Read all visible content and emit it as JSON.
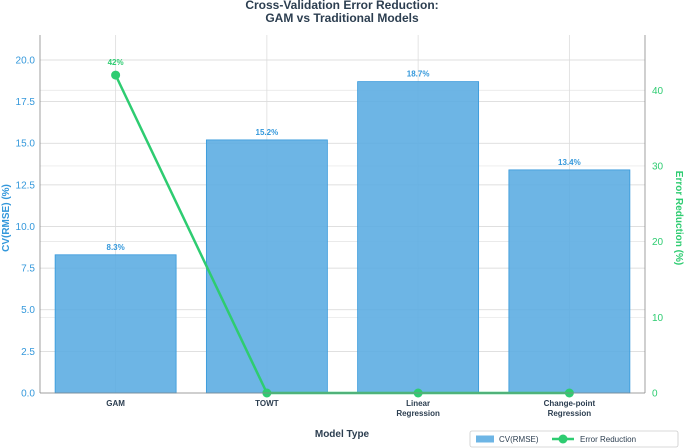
{
  "chart_data": {
    "type": "bar",
    "title": "Cross-Validation Error Reduction:",
    "subtitle": "GAM vs Traditional Models",
    "xlabel": "Model Type",
    "ylabel": "CV(RMSE) (%)",
    "y2label": "Error Reduction (%)",
    "categories": [
      [
        "GAM"
      ],
      [
        "TOWT"
      ],
      [
        "Linear",
        "Regression"
      ],
      [
        "Change-point",
        "Regression"
      ]
    ],
    "ylim": [
      0,
      21.5
    ],
    "y2lim": [
      0,
      47.3
    ],
    "yticks": [
      "0.0",
      "2.5",
      "5.0",
      "7.5",
      "10.0",
      "12.5",
      "15.0",
      "17.5",
      "20.0"
    ],
    "y2ticks": [
      "0",
      "10",
      "20",
      "30",
      "40"
    ],
    "grid": true,
    "legend_position": "bottom-right",
    "series": [
      {
        "name": "CV(RMSE)",
        "type": "bar",
        "axis": "left",
        "values": [
          8.3,
          15.2,
          18.7,
          13.4
        ],
        "labels": [
          "8.3%",
          "15.2%",
          "18.7%",
          "13.4%"
        ],
        "color": "#5dade2"
      },
      {
        "name": "Error Reduction",
        "type": "line",
        "axis": "right",
        "values": [
          42,
          0,
          0,
          0
        ],
        "labels": [
          "42%",
          null,
          null,
          null
        ],
        "color": "#2ecc71"
      }
    ]
  }
}
